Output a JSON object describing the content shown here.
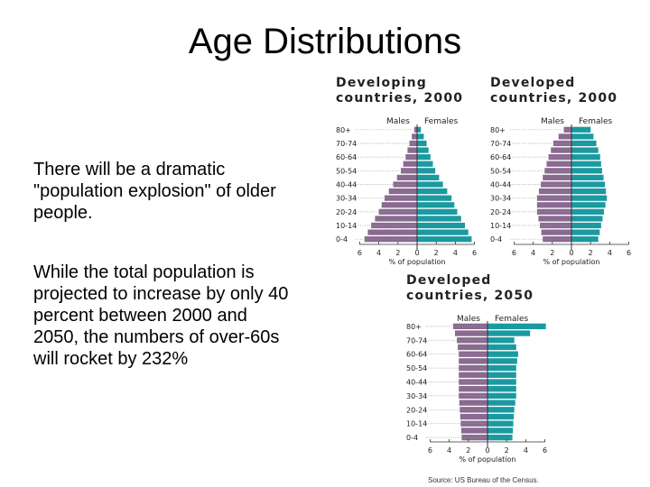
{
  "slide": {
    "title": "Age Distributions",
    "paragraphs": [
      "There will be a dramatic \"population explosion\" of older people.",
      "While the total population is projected to increase by only 40 percent between 2000 and 2050, the numbers of over-60s will rocket by 232%"
    ],
    "source": "Source: US Bureau of the Census."
  },
  "colors": {
    "males": "#8a6a90",
    "females": "#1a9aa0",
    "axis": "#333333",
    "dotted": "#9a9a9a"
  },
  "chart_data": [
    {
      "type": "bar",
      "orientation": "population-pyramid",
      "title_lines": [
        "Developing",
        "countries, 2000"
      ],
      "categories": [
        "80+",
        "70-74",
        "60-64",
        "50-54",
        "40-44",
        "30-34",
        "20-24",
        "10-14",
        "0-4"
      ],
      "series": [
        {
          "name": "Males",
          "values": [
            0.3,
            0.8,
            1.2,
            1.7,
            2.5,
            3.4,
            4.0,
            4.8,
            5.5
          ]
        },
        {
          "name": "Females",
          "values": [
            0.4,
            1.0,
            1.4,
            1.9,
            2.7,
            3.6,
            4.2,
            5.0,
            5.7
          ]
        }
      ],
      "xlabel": "% of population",
      "xticks": [
        "6",
        "4",
        "2",
        "0",
        "2",
        "4",
        "6"
      ],
      "xlim": [
        -6,
        6
      ]
    },
    {
      "type": "bar",
      "orientation": "population-pyramid",
      "title_lines": [
        "Developed",
        "countries, 2000"
      ],
      "categories": [
        "80+",
        "70-74",
        "60-64",
        "50-54",
        "40-44",
        "30-34",
        "20-24",
        "10-14",
        "0-4"
      ],
      "series": [
        {
          "name": "Males",
          "values": [
            0.8,
            1.9,
            2.4,
            2.8,
            3.2,
            3.6,
            3.6,
            3.3,
            3.0
          ]
        },
        {
          "name": "Females",
          "values": [
            2.0,
            2.6,
            3.0,
            3.2,
            3.5,
            3.7,
            3.4,
            3.1,
            2.8
          ]
        }
      ],
      "xlabel": "% of population",
      "xticks": [
        "6",
        "4",
        "2",
        "0",
        "2",
        "4",
        "6"
      ],
      "xlim": [
        -6,
        6
      ]
    },
    {
      "type": "bar",
      "orientation": "population-pyramid",
      "title_lines": [
        "Developed",
        "countries, 2050"
      ],
      "categories": [
        "80+",
        "70-74",
        "60-64",
        "50-54",
        "40-44",
        "30-34",
        "20-24",
        "10-14",
        "0-4"
      ],
      "series": [
        {
          "name": "Males",
          "values": [
            3.6,
            3.2,
            3.0,
            3.0,
            3.0,
            3.0,
            2.9,
            2.8,
            2.7
          ]
        },
        {
          "name": "Females",
          "values": [
            6.1,
            2.8,
            3.2,
            3.0,
            3.0,
            3.0,
            2.8,
            2.7,
            2.6
          ]
        }
      ],
      "xlabel": "% of population",
      "xticks": [
        "6",
        "4",
        "2",
        "0",
        "2",
        "4",
        "6"
      ],
      "xlim": [
        -6,
        6
      ]
    }
  ]
}
